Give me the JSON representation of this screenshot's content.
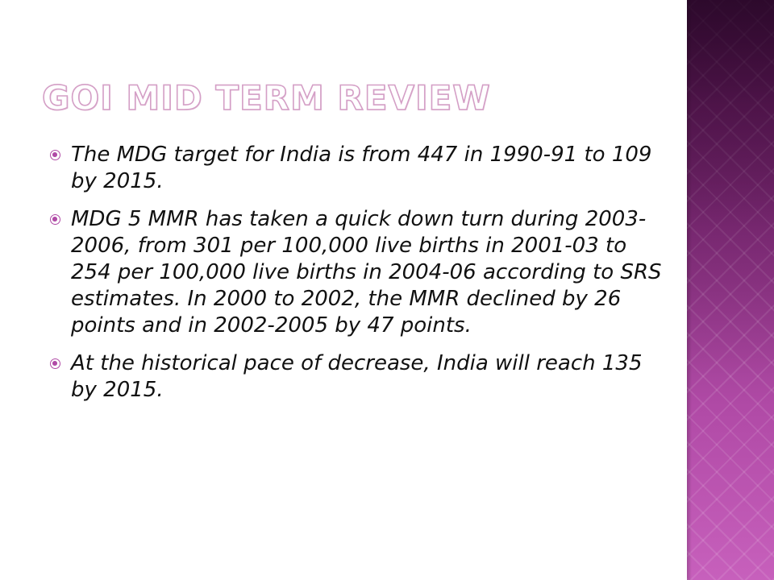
{
  "slide": {
    "title": "GOI MID TERM REVIEW",
    "bullets": [
      "The MDG target for India is from 447 in 1990-91 to 109 by 2015.",
      "MDG 5 MMR has taken a quick down turn during 2003-2006, from 301 per 100,000 live births in 2001-03 to 254 per 100,000 live births in 2004-06 according to SRS estimates. In 2000 to 2002, the MMR declined by 26 points and in 2002-2005 by 47 points.",
      "At the historical pace of decrease, India will reach 135 by 2015."
    ]
  },
  "theme": {
    "accent": "#b04aa6",
    "panel_dark": "#4a1042",
    "panel_light": "#c760bc",
    "title_outline": "#d49fc6"
  },
  "icons": {
    "bullet": "radio-bullet-icon"
  }
}
